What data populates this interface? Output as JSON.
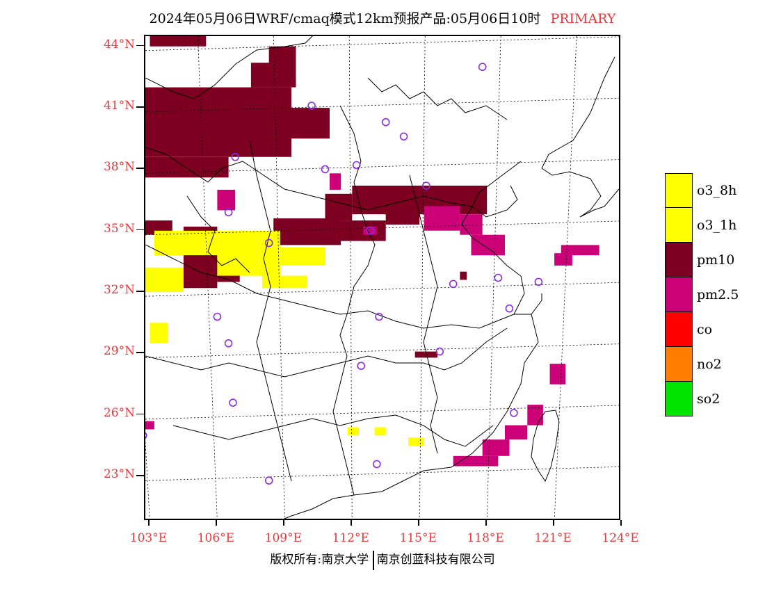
{
  "title": {
    "text": "2024年05月06日WRF/cmaq模式12km预报产品:05月06日10时",
    "label": "PRIMARY"
  },
  "credit": {
    "left": "版权所有:南京大学",
    "right": "南京创蓝科技有限公司"
  },
  "axes": {
    "lat_labels": [
      "44°N",
      "41°N",
      "38°N",
      "35°N",
      "32°N",
      "29°N",
      "26°N",
      "23°N"
    ],
    "lon_labels": [
      "103°E",
      "106°E",
      "109°E",
      "112°E",
      "115°E",
      "118°E",
      "121°E",
      "124°E"
    ]
  },
  "legend": {
    "items": [
      {
        "label": "o3_8h",
        "color": "#ffff00"
      },
      {
        "label": "o3_1h",
        "color": "#ffff00"
      },
      {
        "label": "pm10",
        "color": "#7d0023"
      },
      {
        "label": "pm2.5",
        "color": "#cc0077"
      },
      {
        "label": "co",
        "color": "#ff0000"
      },
      {
        "label": "no2",
        "color": "#ff7e00"
      },
      {
        "label": "so2",
        "color": "#00e400"
      }
    ]
  },
  "chart_data": {
    "type": "heatmap",
    "lon_range": [
      102.8,
      124
    ],
    "lat_range": [
      20.8,
      44.5
    ],
    "lat_ticks": [
      44,
      41,
      38,
      35,
      32,
      29,
      26,
      23
    ],
    "lon_ticks": [
      103,
      106,
      109,
      112,
      115,
      118,
      121,
      124
    ],
    "colors": {
      "o3": "#ffff00",
      "pm10": "#7d0023",
      "pm25": "#cc0077",
      "station": "#8a2be2"
    },
    "cells": [
      {
        "p": "pm10",
        "lon": [
          102.8,
          109.3
        ],
        "lat": [
          38.6,
          42.0
        ]
      },
      {
        "p": "pm10",
        "lon": [
          102.8,
          106.5
        ],
        "lat": [
          37.6,
          38.6
        ]
      },
      {
        "p": "pm10",
        "lon": [
          106.5,
          111.0
        ],
        "lat": [
          39.5,
          41.0
        ]
      },
      {
        "p": "pm10",
        "lon": [
          108.3,
          109.5
        ],
        "lat": [
          42.0,
          44.0
        ]
      },
      {
        "p": "pm10",
        "lon": [
          107.5,
          108.5
        ],
        "lat": [
          42.0,
          43.2
        ]
      },
      {
        "p": "pm10",
        "lon": [
          103.0,
          105.5
        ],
        "lat": [
          44.0,
          44.5
        ]
      },
      {
        "p": "pm10",
        "lon": [
          102.8,
          104.0
        ],
        "lat": [
          34.8,
          35.5
        ]
      },
      {
        "p": "pm10",
        "lon": [
          104.5,
          106.0
        ],
        "lat": [
          32.2,
          35.2
        ]
      },
      {
        "p": "pm10",
        "lon": [
          106.0,
          107.0
        ],
        "lat": [
          32.5,
          33.5
        ]
      },
      {
        "p": "pm10",
        "lon": [
          108.5,
          111.5
        ],
        "lat": [
          34.3,
          35.6
        ]
      },
      {
        "p": "pm10",
        "lon": [
          110.5,
          113.5
        ],
        "lat": [
          34.5,
          35.5
        ]
      },
      {
        "p": "pm10",
        "lon": [
          110.8,
          112.0
        ],
        "lat": [
          35.5,
          36.8
        ]
      },
      {
        "p": "pm10",
        "lon": [
          112.0,
          118.0
        ],
        "lat": [
          35.8,
          37.2
        ]
      },
      {
        "p": "pm10",
        "lon": [
          113.5,
          115.0
        ],
        "lat": [
          35.3,
          35.9
        ]
      },
      {
        "p": "pm10",
        "lon": [
          114.8,
          115.8
        ],
        "lat": [
          28.8,
          29.1
        ]
      },
      {
        "p": "pm10",
        "lon": [
          116.8,
          117.1
        ],
        "lat": [
          32.6,
          33.0
        ]
      },
      {
        "p": "pm25",
        "lon": [
          116.8,
          117.8
        ],
        "lat": [
          34.8,
          35.8
        ]
      },
      {
        "p": "pm25",
        "lon": [
          117.3,
          118.8
        ],
        "lat": [
          33.8,
          34.8
        ]
      },
      {
        "p": "pm25",
        "lon": [
          115.2,
          116.8
        ],
        "lat": [
          35.0,
          36.2
        ]
      },
      {
        "p": "pm25",
        "lon": [
          121.3,
          123.0
        ],
        "lat": [
          33.8,
          34.3
        ]
      },
      {
        "p": "pm25",
        "lon": [
          121.0,
          121.8
        ],
        "lat": [
          33.3,
          33.9
        ]
      },
      {
        "p": "pm25",
        "lon": [
          116.5,
          118.5
        ],
        "lat": [
          23.5,
          24.0
        ]
      },
      {
        "p": "pm25",
        "lon": [
          117.8,
          119.0
        ],
        "lat": [
          24.0,
          24.8
        ]
      },
      {
        "p": "pm25",
        "lon": [
          118.8,
          119.8
        ],
        "lat": [
          24.8,
          25.5
        ]
      },
      {
        "p": "pm25",
        "lon": [
          119.8,
          120.5
        ],
        "lat": [
          25.5,
          26.5
        ]
      },
      {
        "p": "pm25",
        "lon": [
          120.8,
          121.5
        ],
        "lat": [
          27.5,
          28.5
        ]
      },
      {
        "p": "pm25",
        "lon": [
          111.0,
          111.5
        ],
        "lat": [
          37.0,
          37.8
        ]
      },
      {
        "p": "pm25",
        "lon": [
          106.0,
          106.8
        ],
        "lat": [
          36.0,
          37.0
        ]
      },
      {
        "p": "pm25",
        "lon": [
          102.8,
          103.2
        ],
        "lat": [
          25.3,
          25.7
        ]
      },
      {
        "p": "pm25",
        "lon": [
          112.5,
          113.1
        ],
        "lat": [
          34.8,
          35.2
        ]
      },
      {
        "p": "o3",
        "lon": [
          103.2,
          108.8
        ],
        "lat": [
          33.8,
          35.0
        ]
      },
      {
        "p": "o3",
        "lon": [
          106.0,
          108.8
        ],
        "lat": [
          32.8,
          33.8
        ]
      },
      {
        "p": "o3",
        "lon": [
          102.8,
          104.5
        ],
        "lat": [
          32.0,
          33.2
        ]
      },
      {
        "p": "o3",
        "lon": [
          108.0,
          110.0
        ],
        "lat": [
          32.2,
          32.8
        ]
      },
      {
        "p": "o3",
        "lon": [
          108.8,
          110.8
        ],
        "lat": [
          33.3,
          34.2
        ]
      },
      {
        "p": "o3",
        "lon": [
          103.0,
          103.8
        ],
        "lat": [
          29.5,
          30.5
        ]
      },
      {
        "p": "o3",
        "lon": [
          111.8,
          112.3
        ],
        "lat": [
          25.0,
          25.4
        ]
      },
      {
        "p": "o3",
        "lon": [
          113.0,
          113.5
        ],
        "lat": [
          25.0,
          25.4
        ]
      },
      {
        "p": "o3",
        "lon": [
          114.5,
          115.2
        ],
        "lat": [
          24.5,
          24.9
        ]
      }
    ],
    "stations": [
      {
        "lon": 117.8,
        "lat": 43.0
      },
      {
        "lon": 110.2,
        "lat": 41.1
      },
      {
        "lon": 113.5,
        "lat": 40.3
      },
      {
        "lon": 114.3,
        "lat": 39.6
      },
      {
        "lon": 106.8,
        "lat": 38.6
      },
      {
        "lon": 110.8,
        "lat": 38.0
      },
      {
        "lon": 112.2,
        "lat": 38.2
      },
      {
        "lon": 115.3,
        "lat": 37.2
      },
      {
        "lon": 106.5,
        "lat": 35.9
      },
      {
        "lon": 112.8,
        "lat": 35.0
      },
      {
        "lon": 108.3,
        "lat": 34.4
      },
      {
        "lon": 116.5,
        "lat": 32.4
      },
      {
        "lon": 118.5,
        "lat": 32.7
      },
      {
        "lon": 120.3,
        "lat": 32.5
      },
      {
        "lon": 119.0,
        "lat": 31.2
      },
      {
        "lon": 106.0,
        "lat": 30.8
      },
      {
        "lon": 113.2,
        "lat": 30.8
      },
      {
        "lon": 106.5,
        "lat": 29.5
      },
      {
        "lon": 115.9,
        "lat": 29.1
      },
      {
        "lon": 112.4,
        "lat": 28.4
      },
      {
        "lon": 106.7,
        "lat": 26.6
      },
      {
        "lon": 119.2,
        "lat": 26.1
      },
      {
        "lon": 102.7,
        "lat": 25.0
      },
      {
        "lon": 113.1,
        "lat": 23.6
      },
      {
        "lon": 108.3,
        "lat": 22.8
      }
    ]
  }
}
